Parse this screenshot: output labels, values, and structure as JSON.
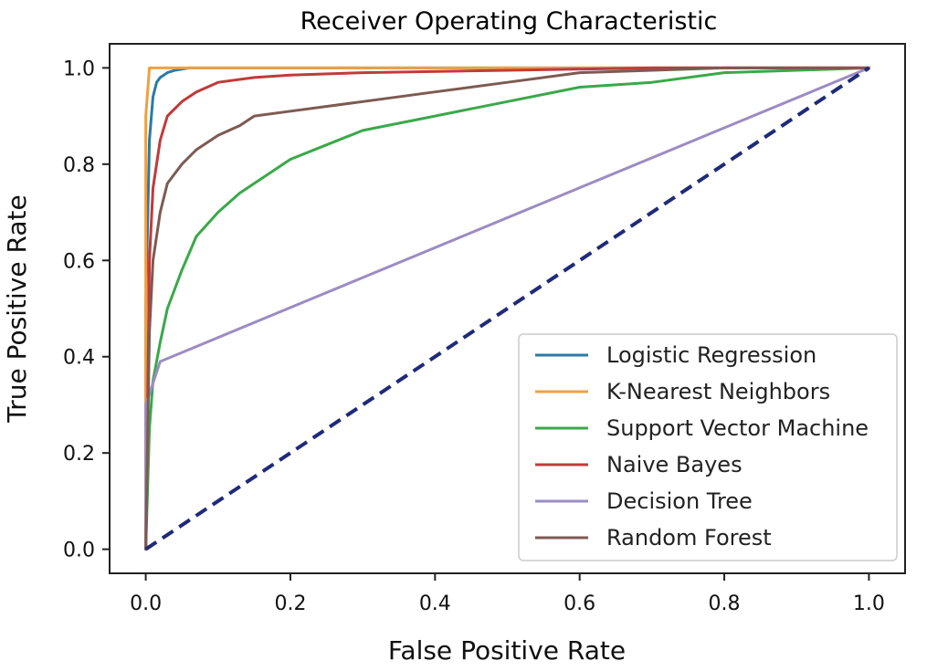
{
  "chart_data": {
    "type": "line",
    "title": "Receiver Operating Characteristic",
    "xlabel": "False Positive Rate",
    "ylabel": "True Positive Rate",
    "xlim": [
      -0.05,
      1.05
    ],
    "ylim": [
      -0.05,
      1.05
    ],
    "xticks": [
      "0.0",
      "0.2",
      "0.4",
      "0.6",
      "0.8",
      "1.0"
    ],
    "yticks": [
      "0.0",
      "0.2",
      "0.4",
      "0.6",
      "0.8",
      "1.0"
    ],
    "grid": false,
    "legend_position": "lower-right",
    "series": [
      {
        "name": "Logistic Regression",
        "color": "#2a7aa8",
        "x": [
          0.0,
          0.0,
          0.005,
          0.01,
          0.015,
          0.02,
          0.03,
          0.04,
          0.06,
          0.1,
          0.3,
          0.6,
          1.0
        ],
        "y": [
          0.0,
          0.5,
          0.85,
          0.94,
          0.97,
          0.98,
          0.99,
          0.995,
          1.0,
          1.0,
          1.0,
          1.0,
          1.0
        ]
      },
      {
        "name": "K-Nearest Neighbors",
        "color": "#f0a040",
        "x": [
          0.0,
          0.0,
          0.005,
          1.0
        ],
        "y": [
          0.0,
          0.9,
          1.0,
          1.0
        ]
      },
      {
        "name": "Support Vector Machine",
        "color": "#3aa84a",
        "x": [
          0.0,
          0.005,
          0.01,
          0.02,
          0.03,
          0.05,
          0.07,
          0.1,
          0.13,
          0.17,
          0.2,
          0.25,
          0.3,
          0.4,
          0.5,
          0.6,
          0.7,
          0.8,
          0.9,
          1.0
        ],
        "y": [
          0.0,
          0.25,
          0.35,
          0.43,
          0.5,
          0.58,
          0.65,
          0.7,
          0.74,
          0.78,
          0.81,
          0.84,
          0.87,
          0.9,
          0.93,
          0.96,
          0.97,
          0.99,
          0.995,
          1.0
        ]
      },
      {
        "name": "Naive Bayes",
        "color": "#c23a3a",
        "x": [
          0.0,
          0.005,
          0.01,
          0.02,
          0.03,
          0.05,
          0.07,
          0.1,
          0.15,
          0.2,
          0.3,
          0.5,
          0.7,
          1.0
        ],
        "y": [
          0.0,
          0.6,
          0.75,
          0.85,
          0.9,
          0.93,
          0.95,
          0.97,
          0.98,
          0.985,
          0.99,
          0.995,
          1.0,
          1.0
        ]
      },
      {
        "name": "Decision Tree",
        "color": "#9b8cc4",
        "x": [
          0.0,
          0.0,
          0.02,
          1.0
        ],
        "y": [
          0.0,
          0.3,
          0.39,
          1.0
        ]
      },
      {
        "name": "Random Forest",
        "color": "#7d5a52",
        "x": [
          0.0,
          0.005,
          0.01,
          0.02,
          0.03,
          0.05,
          0.07,
          0.1,
          0.13,
          0.15,
          0.2,
          0.3,
          0.4,
          0.5,
          0.6,
          0.8,
          1.0
        ],
        "y": [
          0.0,
          0.45,
          0.6,
          0.7,
          0.76,
          0.8,
          0.83,
          0.86,
          0.88,
          0.9,
          0.91,
          0.93,
          0.95,
          0.97,
          0.99,
          1.0,
          1.0
        ]
      },
      {
        "name": "",
        "color": "#1f2a78",
        "dashed": true,
        "x": [
          0.0,
          1.0
        ],
        "y": [
          0.0,
          1.0
        ]
      }
    ]
  }
}
